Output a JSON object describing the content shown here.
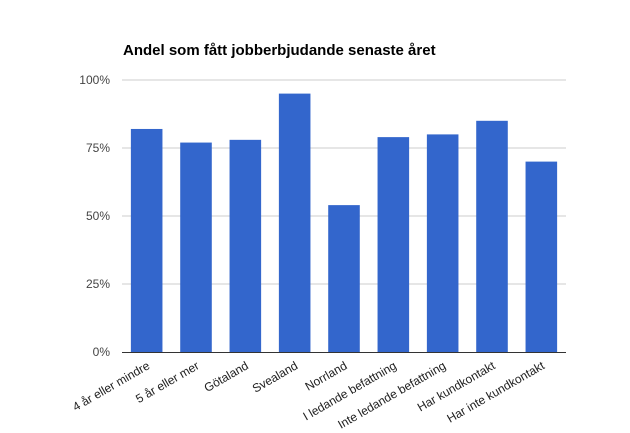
{
  "chart_data": {
    "type": "bar",
    "title": "Andel som fått jobberbjudande senaste året",
    "xlabel": "",
    "ylabel": "",
    "categories": [
      "4 år eller mindre",
      "5 år eller mer",
      "Götaland",
      "Svealand",
      "Norrland",
      "I ledande befattning",
      "Inte ledande befattning",
      "Har kundkontakt",
      "Har inte kundkontakt"
    ],
    "values": [
      82,
      77,
      78,
      95,
      54,
      79,
      80,
      85,
      70
    ],
    "ylim": [
      0,
      100
    ],
    "yticks": [
      0,
      25,
      50,
      75,
      100
    ],
    "ytick_labels": [
      "0%",
      "25%",
      "50%",
      "75%",
      "100%"
    ],
    "bar_color": "#3366cc",
    "grid": true,
    "legend": "none"
  }
}
